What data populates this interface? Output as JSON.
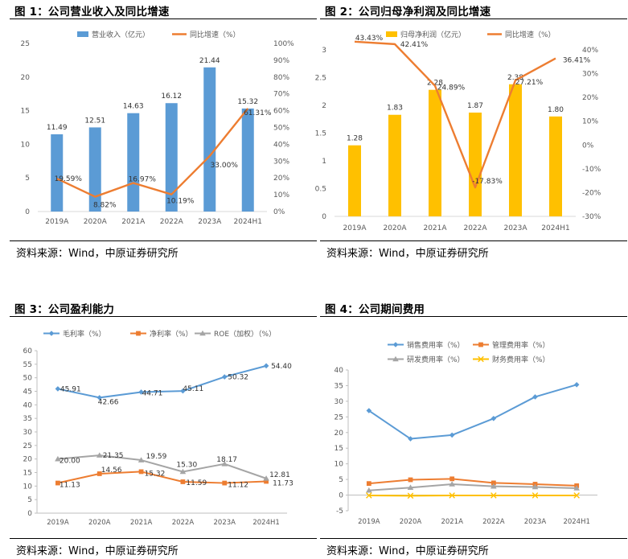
{
  "source": "资料来源：Wind，中原证券研究所",
  "chart_data": [
    {
      "type": "bar+line",
      "title": "图 1：公司营业收入及同比增速",
      "categories": [
        "2019A",
        "2020A",
        "2021A",
        "2022A",
        "2023A",
        "2024H1"
      ],
      "series": [
        {
          "name": "营业收入（亿元）",
          "kind": "bar",
          "axis": "left",
          "color": "#5b9bd5",
          "values": [
            11.49,
            12.51,
            14.63,
            16.12,
            21.44,
            15.32
          ],
          "labels": [
            "11.49",
            "12.51",
            "14.63",
            "16.12",
            "21.44",
            "15.32"
          ]
        },
        {
          "name": "同比增速（%）",
          "kind": "line",
          "axis": "right",
          "color": "#ed7d31",
          "values": [
            19.59,
            8.82,
            16.97,
            10.19,
            33.0,
            61.31
          ],
          "labels": [
            "19.59%",
            "8.82%",
            "16.97%",
            "10.19%",
            "33.00%",
            "61.31%"
          ]
        }
      ],
      "y_left": {
        "min": 0,
        "max": 25,
        "step": 5,
        "ticks": [
          "0",
          "5",
          "10",
          "15",
          "20",
          "25"
        ]
      },
      "y_right": {
        "min": 0,
        "max": 100,
        "step": 10,
        "ticks": [
          "0%",
          "10%",
          "20%",
          "30%",
          "40%",
          "50%",
          "60%",
          "70%",
          "80%",
          "90%",
          "100%"
        ]
      },
      "legend": "top"
    },
    {
      "type": "bar+line",
      "title": "图 2：公司归母净利润及同比增速",
      "categories": [
        "2019A",
        "2020A",
        "2021A",
        "2022A",
        "2023A",
        "2024H1"
      ],
      "series": [
        {
          "name": "归母净利润（亿元）",
          "kind": "bar",
          "axis": "left",
          "color": "#ffc000",
          "values": [
            1.28,
            1.83,
            2.28,
            1.87,
            2.38,
            1.8
          ],
          "labels": [
            "1.28",
            "1.83",
            "2.28",
            "1.87",
            "2.38",
            "1.80"
          ]
        },
        {
          "name": "同比增速（%）",
          "kind": "line",
          "axis": "right",
          "color": "#ed7d31",
          "values": [
            43.43,
            42.41,
            24.89,
            -17.83,
            27.21,
            36.41
          ],
          "labels": [
            "43.43%",
            "42.41%",
            "24.89%",
            "-17.83%",
            "27.21%",
            "36.41%"
          ]
        }
      ],
      "y_left": {
        "min": 0,
        "max": 3,
        "step": 0.5,
        "ticks": [
          "0",
          "0.5",
          "1",
          "1.5",
          "2",
          "2.5",
          "3"
        ]
      },
      "y_right": {
        "min": -30,
        "max": 40,
        "step": 10,
        "ticks": [
          "-30%",
          "-20%",
          "-10%",
          "0%",
          "10%",
          "20%",
          "30%",
          "40%"
        ]
      },
      "legend": "top"
    },
    {
      "type": "line",
      "title": "图 3：公司盈利能力",
      "categories": [
        "2019A",
        "2020A",
        "2021A",
        "2022A",
        "2023A",
        "2024H1"
      ],
      "series": [
        {
          "name": "毛利率（%）",
          "color": "#5b9bd5",
          "marker": "diamond",
          "values": [
            45.91,
            42.66,
            44.71,
            45.11,
            50.32,
            54.4
          ],
          "labels": [
            "45.91",
            "42.66",
            "44.71",
            "45.11",
            "50.32",
            "54.40"
          ]
        },
        {
          "name": "净利率（%）",
          "color": "#ed7d31",
          "marker": "square",
          "values": [
            11.13,
            14.56,
            15.32,
            11.59,
            11.12,
            11.73
          ],
          "labels": [
            "11.13",
            "14.56",
            "15.32",
            "11.59",
            "11.12",
            "11.73"
          ]
        },
        {
          "name": "ROE（加权）（%）",
          "color": "#a5a5a5",
          "marker": "triangle",
          "values": [
            20.0,
            21.35,
            19.59,
            15.3,
            18.17,
            12.81
          ],
          "labels": [
            "20.00",
            "21.35",
            "19.59",
            "15.30",
            "18.17",
            "12.81"
          ]
        }
      ],
      "y": {
        "min": 0,
        "max": 60,
        "step": 5,
        "ticks": [
          "0",
          "5",
          "10",
          "15",
          "20",
          "25",
          "30",
          "35",
          "40",
          "45",
          "50",
          "55",
          "60"
        ]
      },
      "legend": "top"
    },
    {
      "type": "line",
      "title": "图 4：公司期间费用",
      "categories": [
        "2019A",
        "2020A",
        "2021A",
        "2022A",
        "2023A",
        "2024H1"
      ],
      "series": [
        {
          "name": "销售费用率（%）",
          "color": "#5b9bd5",
          "marker": "diamond",
          "values": [
            27.0,
            18.0,
            19.2,
            24.5,
            31.4,
            35.3
          ]
        },
        {
          "name": "管理费用率（%）",
          "color": "#ed7d31",
          "marker": "square",
          "values": [
            3.7,
            4.9,
            5.2,
            3.9,
            3.5,
            3.0
          ]
        },
        {
          "name": "研发费用率（%）",
          "color": "#a5a5a5",
          "marker": "triangle",
          "values": [
            1.5,
            2.4,
            3.5,
            2.8,
            2.6,
            2.2
          ]
        },
        {
          "name": "财务费用率（%）",
          "color": "#ffc000",
          "marker": "x",
          "values": [
            -0.1,
            -0.2,
            -0.1,
            -0.1,
            -0.1,
            -0.1
          ]
        }
      ],
      "y": {
        "min": -5,
        "max": 40,
        "step": 5,
        "ticks": [
          "-5",
          "0",
          "5",
          "10",
          "15",
          "20",
          "25",
          "30",
          "35",
          "40"
        ]
      },
      "legend": "top"
    }
  ]
}
